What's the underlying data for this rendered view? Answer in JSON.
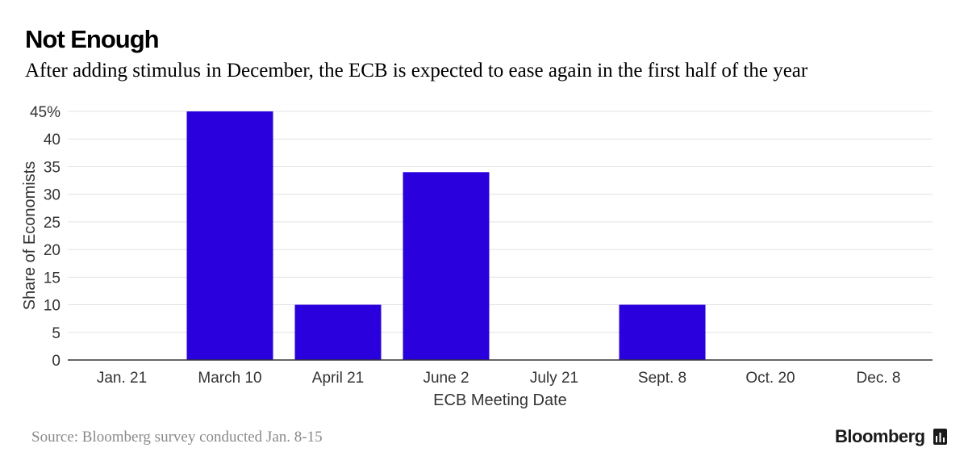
{
  "title": "Not Enough",
  "subtitle": "After adding stimulus in December, the ECB is expected to ease again in the first half of the year",
  "source": "Source: Bloomberg survey conducted Jan. 8-15",
  "brand": "Bloomberg",
  "colors": {
    "bar": "#2a00dd",
    "grid": "#e3e3e3",
    "axis": "#333333",
    "tick_text": "#333333"
  },
  "chart_data": {
    "type": "bar",
    "categories": [
      "Jan. 21",
      "March 10",
      "April 21",
      "June 2",
      "July 21",
      "Sept. 8",
      "Oct. 20",
      "Dec. 8"
    ],
    "values": [
      0,
      45,
      10,
      34,
      0,
      10,
      0,
      0
    ],
    "xlabel": "ECB Meeting Date",
    "ylabel": "Share of Economists",
    "ylim": [
      0,
      45
    ],
    "yticks": [
      0,
      5,
      10,
      15,
      20,
      25,
      30,
      35,
      40,
      45
    ],
    "ytick_labels": [
      "0",
      "5",
      "10",
      "15",
      "20",
      "25",
      "30",
      "35",
      "40",
      "45%"
    ],
    "grid": true
  }
}
